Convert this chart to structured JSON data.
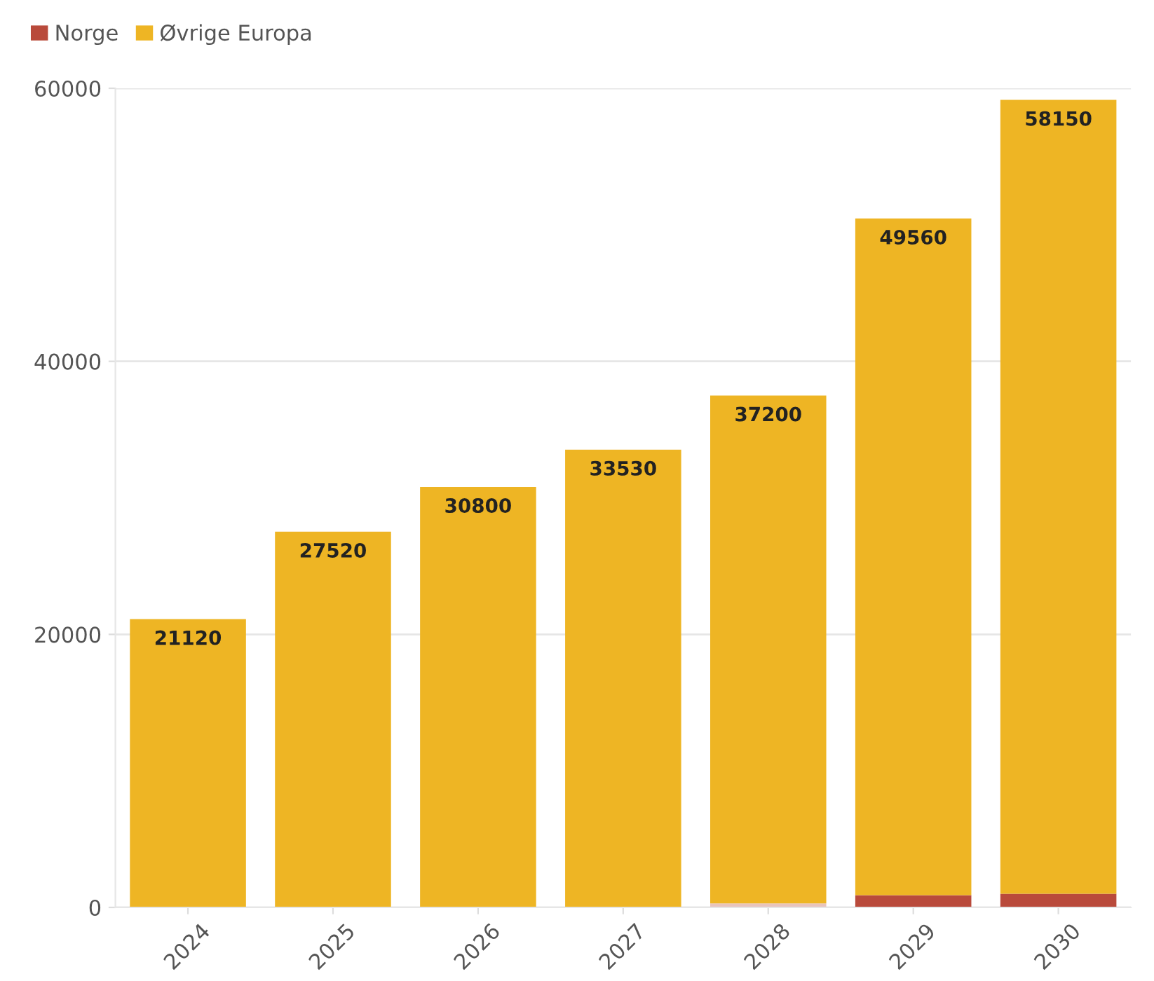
{
  "chart_data": {
    "type": "bar",
    "stacked": true,
    "categories": [
      "2024",
      "2025",
      "2026",
      "2027",
      "2028",
      "2029",
      "2030"
    ],
    "series": [
      {
        "name": "Norge",
        "color": "#b94a3b",
        "colors": [
          "#b94a3b",
          "#b94a3b",
          "#b94a3b",
          "#b94a3b",
          "#e8c4bc",
          "#b94a3b",
          "#b94a3b"
        ],
        "values": [
          0,
          0,
          0,
          0,
          300,
          900,
          1000
        ]
      },
      {
        "name": "Øvrige Europa",
        "color": "#eeb524",
        "values": [
          21120,
          27520,
          30800,
          33530,
          37200,
          49560,
          58150
        ],
        "value_labels": [
          "21120",
          "27520",
          "30800",
          "33530",
          "37200",
          "49560",
          "58150"
        ]
      }
    ],
    "ylim": [
      0,
      60000
    ],
    "yticks": [
      0,
      20000,
      40000,
      60000
    ],
    "grid": "y",
    "legend": "top left"
  }
}
